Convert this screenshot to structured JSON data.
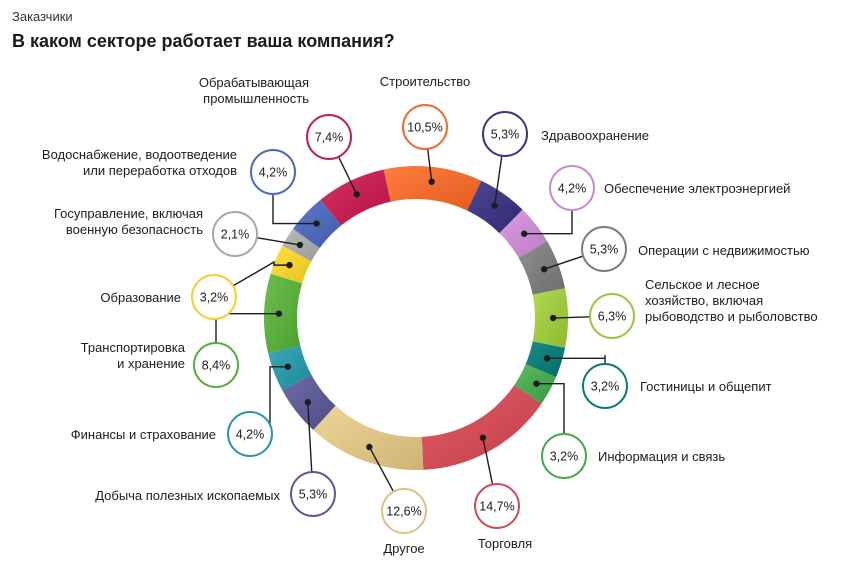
{
  "header": {
    "subtitle": "Заказчики",
    "title": "В каком секторе работает ваша компания?"
  },
  "chart_data": {
    "type": "pie",
    "variant": "donut",
    "unit": "%",
    "slices": [
      {
        "label": "Строительство",
        "value": 10.5,
        "display": "10,5%",
        "color": "#ef6b2d"
      },
      {
        "label": "Здравоохранение",
        "value": 5.3,
        "display": "5,3%",
        "color": "#3b3680"
      },
      {
        "label": "Обеспечение электроэнергией",
        "value": 4.2,
        "display": "4,2%",
        "color": "#c98ad0"
      },
      {
        "label": "Операции с недвижимостью",
        "value": 5.3,
        "display": "5,3%",
        "color": "#7c7c7c"
      },
      {
        "label": "Сельское и лесное хозяйство, включая рыбоводство и рыболовство",
        "value": 6.3,
        "display": "6,3%",
        "color": "#9dc73f"
      },
      {
        "label": "Гостиницы и общепит",
        "value": 3.2,
        "display": "3,2%",
        "color": "#0b7a74"
      },
      {
        "label": "Информация и связь",
        "value": 3.2,
        "display": "3,2%",
        "color": "#48a84e"
      },
      {
        "label": "Торговля",
        "value": 14.7,
        "display": "14,7%",
        "color": "#cf4b55"
      },
      {
        "label": "Другое",
        "value": 12.6,
        "display": "12,6%",
        "color": "#dcc384"
      },
      {
        "label": "Добыча полезных ископаемых",
        "value": 5.3,
        "display": "5,3%",
        "color": "#5b5a94"
      },
      {
        "label": "Финансы и страхование",
        "value": 4.2,
        "display": "4,2%",
        "color": "#2a96a6"
      },
      {
        "label": "Транспортировка и хранение",
        "value": 8.4,
        "display": "8,4%",
        "color": "#58ad3c"
      },
      {
        "label": "Образование",
        "value": 3.2,
        "display": "3,2%",
        "color": "#f5cf2c"
      },
      {
        "label": "Госуправление, включая военную безопасность",
        "value": 2.1,
        "display": "2,1%",
        "color": "#a8a8a8"
      },
      {
        "label": "Водоснабжение, водоотведение или переработка отходов",
        "value": 4.2,
        "display": "4,2%",
        "color": "#4d68b8"
      },
      {
        "label": "Обрабатывающая промышленность",
        "value": 7.4,
        "display": "7,4%",
        "color": "#c22050"
      }
    ]
  }
}
